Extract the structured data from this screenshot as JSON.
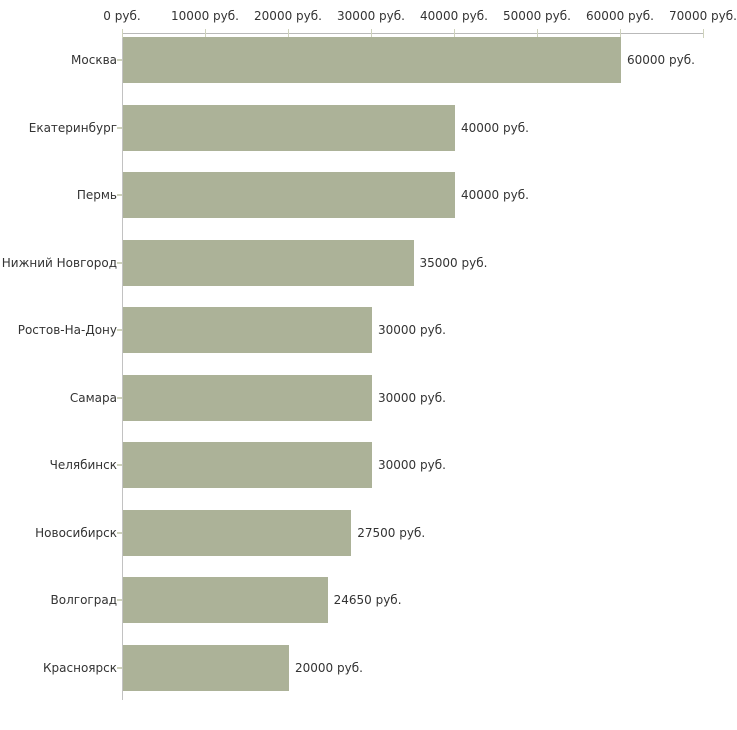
{
  "chart_data": {
    "type": "bar",
    "orientation": "horizontal",
    "categories": [
      "Москва",
      "Екатеринбург",
      "Пермь",
      "Нижний Новгород",
      "Ростов-На-Дону",
      "Самара",
      "Челябинск",
      "Новосибирск",
      "Волгоград",
      "Красноярск"
    ],
    "values": [
      60000,
      40000,
      40000,
      35000,
      30000,
      30000,
      30000,
      27500,
      24650,
      20000
    ],
    "value_labels": [
      "60000 руб.",
      "40000 руб.",
      "40000 руб.",
      "35000 руб.",
      "30000 руб.",
      "30000 руб.",
      "30000 руб.",
      "27500 руб.",
      "24650 руб.",
      "20000 руб."
    ],
    "x_axis": {
      "position": "top",
      "min": 0,
      "max": 70000,
      "tick_step": 10000,
      "tick_labels": [
        "0 руб.",
        "10000 руб.",
        "20000 руб.",
        "30000 руб.",
        "40000 руб.",
        "50000 руб.",
        "60000 руб.",
        "70000 руб."
      ]
    },
    "title": "",
    "xlabel": "",
    "ylabel": "",
    "grid": false,
    "legend": false,
    "bar_color": "#acb298",
    "axis_line_color": "#b9b9b9",
    "tick_color": "#ced2bc",
    "text_color": "#333333",
    "background_color": "#ffffff",
    "unit": "руб."
  }
}
